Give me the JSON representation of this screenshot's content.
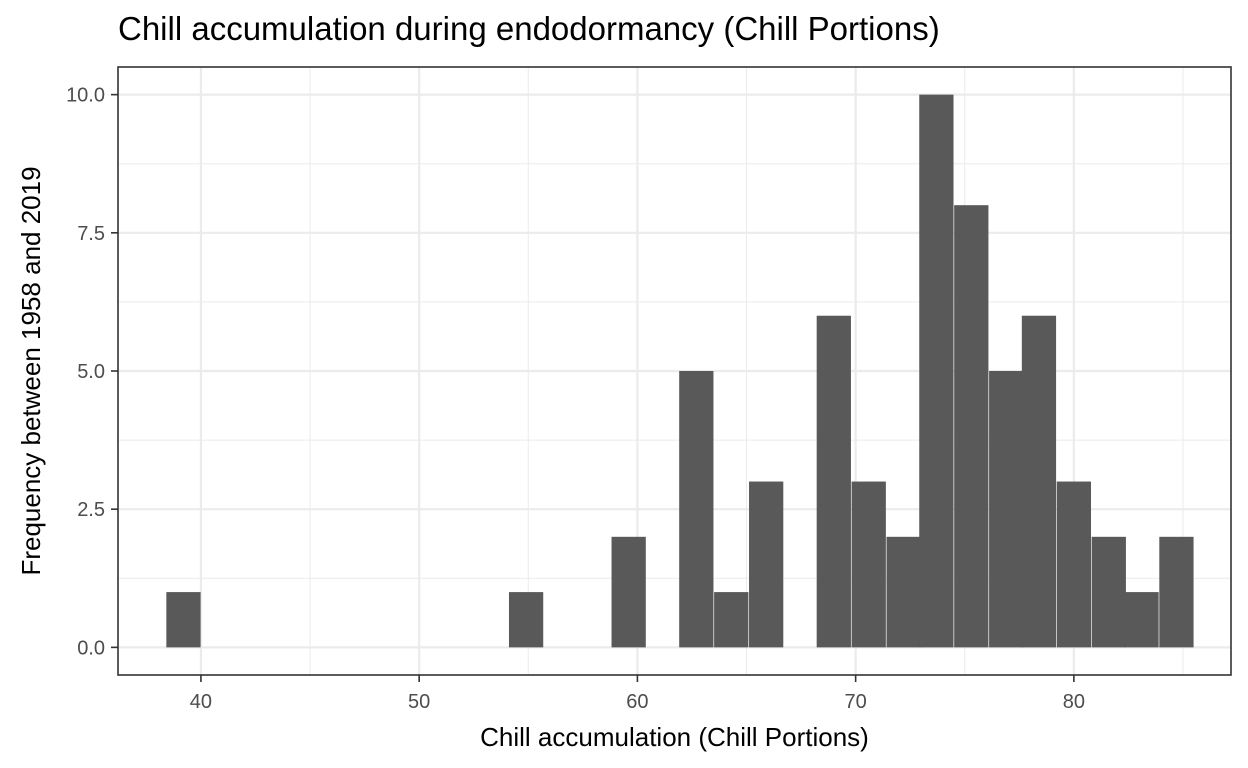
{
  "chart_data": {
    "type": "bar",
    "title": "Chill accumulation during endodormancy (Chill Portions)",
    "xlabel": "Chill accumulation (Chill Portions)",
    "ylabel": "Frequency between 1958 and 2019",
    "xlim": [
      36.2,
      87.2
    ],
    "ylim": [
      -0.5,
      10.5
    ],
    "x_ticks": [
      40,
      50,
      60,
      70,
      80
    ],
    "x_tick_labels": [
      "40",
      "50",
      "60",
      "70",
      "80"
    ],
    "y_ticks": [
      0,
      2.5,
      5,
      7.5,
      10
    ],
    "y_tick_labels": [
      "0.0",
      "2.5",
      "5.0",
      "7.5",
      "10.0"
    ],
    "grid": true,
    "bin_width": 1.57,
    "bins": [
      {
        "x": 39.2,
        "count": 1
      },
      {
        "x": 54.9,
        "count": 1
      },
      {
        "x": 59.6,
        "count": 2
      },
      {
        "x": 62.7,
        "count": 5
      },
      {
        "x": 64.3,
        "count": 1
      },
      {
        "x": 65.9,
        "count": 3
      },
      {
        "x": 69.0,
        "count": 6
      },
      {
        "x": 70.6,
        "count": 3
      },
      {
        "x": 72.2,
        "count": 2
      },
      {
        "x": 73.7,
        "count": 10
      },
      {
        "x": 75.3,
        "count": 8
      },
      {
        "x": 76.9,
        "count": 5
      },
      {
        "x": 78.4,
        "count": 6
      },
      {
        "x": 80.0,
        "count": 3
      },
      {
        "x": 81.6,
        "count": 2
      },
      {
        "x": 83.1,
        "count": 1
      },
      {
        "x": 84.7,
        "count": 2
      }
    ],
    "colors": {
      "bar": "#595959",
      "grid": "#ebebeb",
      "panel_border": "#333333"
    }
  }
}
